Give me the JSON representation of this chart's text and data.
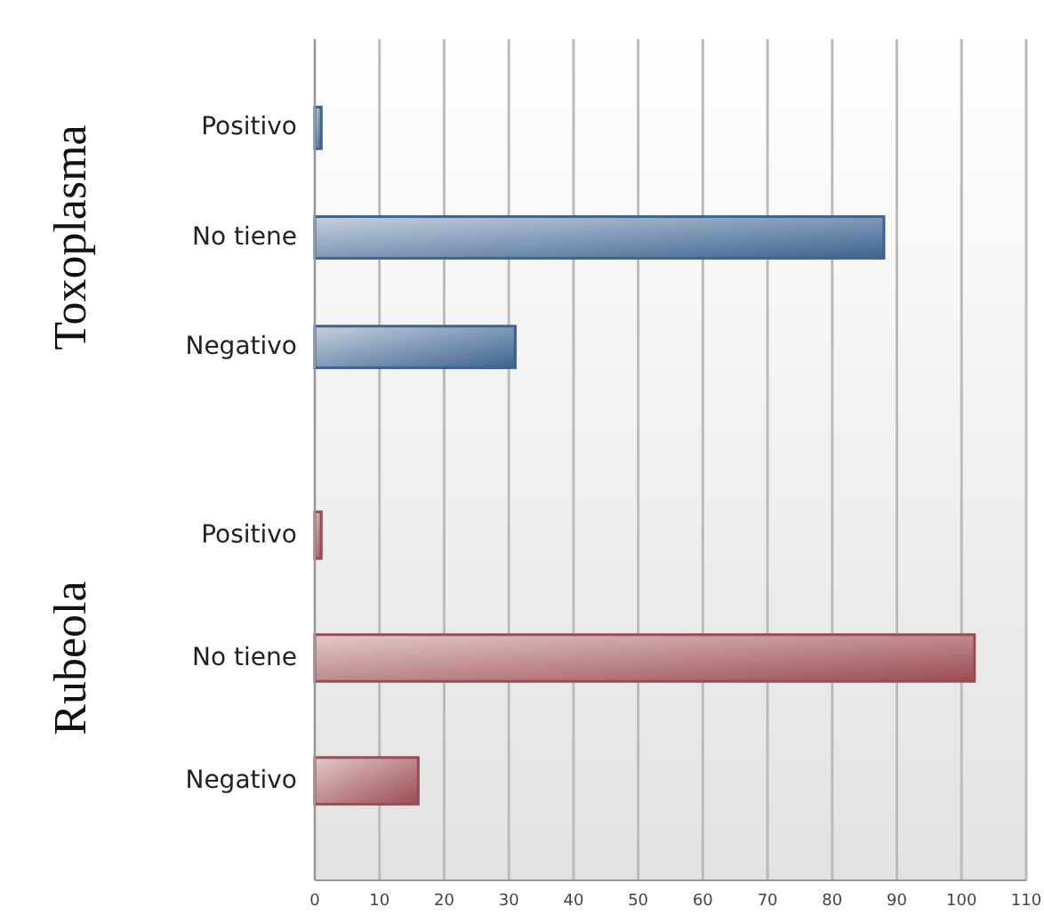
{
  "chart_data": [
    {
      "type": "bar",
      "orientation": "horizontal",
      "ylabel": "Toxoplasma",
      "categories": [
        "Positivo",
        "No tiene",
        "Negativo"
      ],
      "values": [
        1,
        88,
        31
      ],
      "color": "#3d6390",
      "xlim": [
        0,
        110
      ],
      "xticks": [
        0,
        10,
        20,
        30,
        40,
        50,
        60,
        70,
        80,
        90,
        100,
        110
      ],
      "grid": "x",
      "tick_labels": "y"
    },
    {
      "type": "bar",
      "orientation": "horizontal",
      "ylabel": "Rubeola",
      "categories": [
        "Positivo",
        "No tiene",
        "Negativo"
      ],
      "values": [
        1,
        102,
        16
      ],
      "color": "#9b4c52",
      "xlim": [
        0,
        110
      ],
      "xticks": [
        0,
        10,
        20,
        30,
        40,
        50,
        60,
        70,
        80,
        90,
        100,
        110
      ],
      "grid": "x"
    }
  ]
}
